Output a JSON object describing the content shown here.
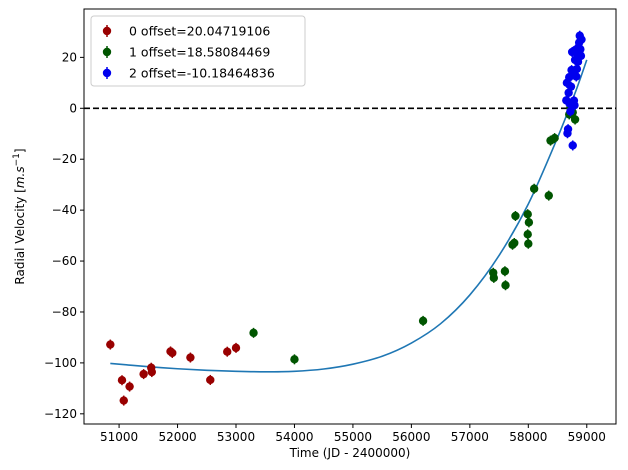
{
  "chart_data": {
    "type": "scatter",
    "xlabel": "Time (JD - 2400000)",
    "ylabel_main": "Radial Velocity [",
    "ylabel_unit": "m.s",
    "ylabel_exp": "−1",
    "ylabel_close": "]",
    "xlim": [
      50400,
      59500
    ],
    "ylim": [
      -124,
      39
    ],
    "x_ticks": [
      51000,
      52000,
      53000,
      54000,
      55000,
      56000,
      57000,
      58000,
      59000
    ],
    "x_tick_labels": [
      "51000",
      "52000",
      "53000",
      "54000",
      "55000",
      "56000",
      "57000",
      "58000",
      "59000"
    ],
    "y_ticks": [
      -120,
      -100,
      -80,
      -60,
      -40,
      -20,
      0,
      20
    ],
    "y_tick_labels": [
      "−120",
      "−100",
      "−80",
      "−60",
      "−40",
      "−20",
      "0",
      "20"
    ],
    "zero_line": 0,
    "legend": {
      "placement": "top-left"
    },
    "series": [
      {
        "name": "0 offset=20.04719106",
        "color": "#990000",
        "points": [
          [
            50850,
            -92.8
          ],
          [
            51050,
            -106.8
          ],
          [
            51080,
            -114.8
          ],
          [
            51180,
            -109.3
          ],
          [
            51420,
            -104.4
          ],
          [
            51550,
            -101.9
          ],
          [
            51560,
            -103.6
          ],
          [
            51880,
            -95.5
          ],
          [
            51910,
            -96.1
          ],
          [
            52220,
            -97.9
          ],
          [
            52560,
            -106.7
          ],
          [
            52850,
            -95.6
          ],
          [
            53000,
            -94.1
          ]
        ]
      },
      {
        "name": "1 offset=18.58084469",
        "color": "#005500",
        "points": [
          [
            53300,
            -88.2
          ],
          [
            54000,
            -98.6
          ],
          [
            56200,
            -83.5
          ],
          [
            57400,
            -64.6
          ],
          [
            57410,
            -66.6
          ],
          [
            57600,
            -64.0
          ],
          [
            57610,
            -69.5
          ],
          [
            57730,
            -53.6
          ],
          [
            57760,
            -52.9
          ],
          [
            57780,
            -42.3
          ],
          [
            57990,
            -41.6
          ],
          [
            57990,
            -49.5
          ],
          [
            58000,
            -53.2
          ],
          [
            58010,
            -44.8
          ],
          [
            58100,
            -31.6
          ],
          [
            58350,
            -34.3
          ],
          [
            58380,
            -12.7
          ],
          [
            58450,
            -11.7
          ],
          [
            58700,
            -2.4
          ],
          [
            58720,
            0.4
          ],
          [
            58760,
            -1.6
          ],
          [
            58800,
            -4.4
          ]
        ]
      },
      {
        "name": "2 offset=-10.18464836",
        "color": "#0000ee",
        "points": [
          [
            58650,
            3.1
          ],
          [
            58660,
            10.0
          ],
          [
            58670,
            -9.8
          ],
          [
            58680,
            -8.2
          ],
          [
            58690,
            6.1
          ],
          [
            58700,
            12.2
          ],
          [
            58710,
            1.8
          ],
          [
            58720,
            -1.2
          ],
          [
            58730,
            8.5
          ],
          [
            58740,
            15.0
          ],
          [
            58750,
            22.1
          ],
          [
            58760,
            -14.6
          ],
          [
            58770,
            14.2
          ],
          [
            58780,
            3.0
          ],
          [
            58790,
            1.2
          ],
          [
            58800,
            19.0
          ],
          [
            58810,
            23.0
          ],
          [
            58820,
            12.5
          ],
          [
            58830,
            15.4
          ],
          [
            58840,
            21.4
          ],
          [
            58850,
            18.3
          ],
          [
            58860,
            24.0
          ],
          [
            58870,
            25.8
          ],
          [
            58880,
            28.5
          ],
          [
            58890,
            23.2
          ],
          [
            58900,
            20.6
          ],
          [
            58910,
            27.0
          ]
        ]
      }
    ],
    "model_curve": {
      "color": "#1f77b4",
      "x": [
        50850,
        51500,
        52000,
        52500,
        53000,
        53500,
        54000,
        54500,
        55000,
        55500,
        56000,
        56500,
        57000,
        57500,
        58000,
        58500,
        58800,
        59000
      ],
      "y": [
        -100.2,
        -101.5,
        -102.3,
        -102.9,
        -103.3,
        -103.5,
        -103.3,
        -102.4,
        -100.5,
        -97.4,
        -92.2,
        -84.6,
        -73.3,
        -57.8,
        -37.6,
        -11.5,
        6.0,
        19.0
      ]
    }
  }
}
